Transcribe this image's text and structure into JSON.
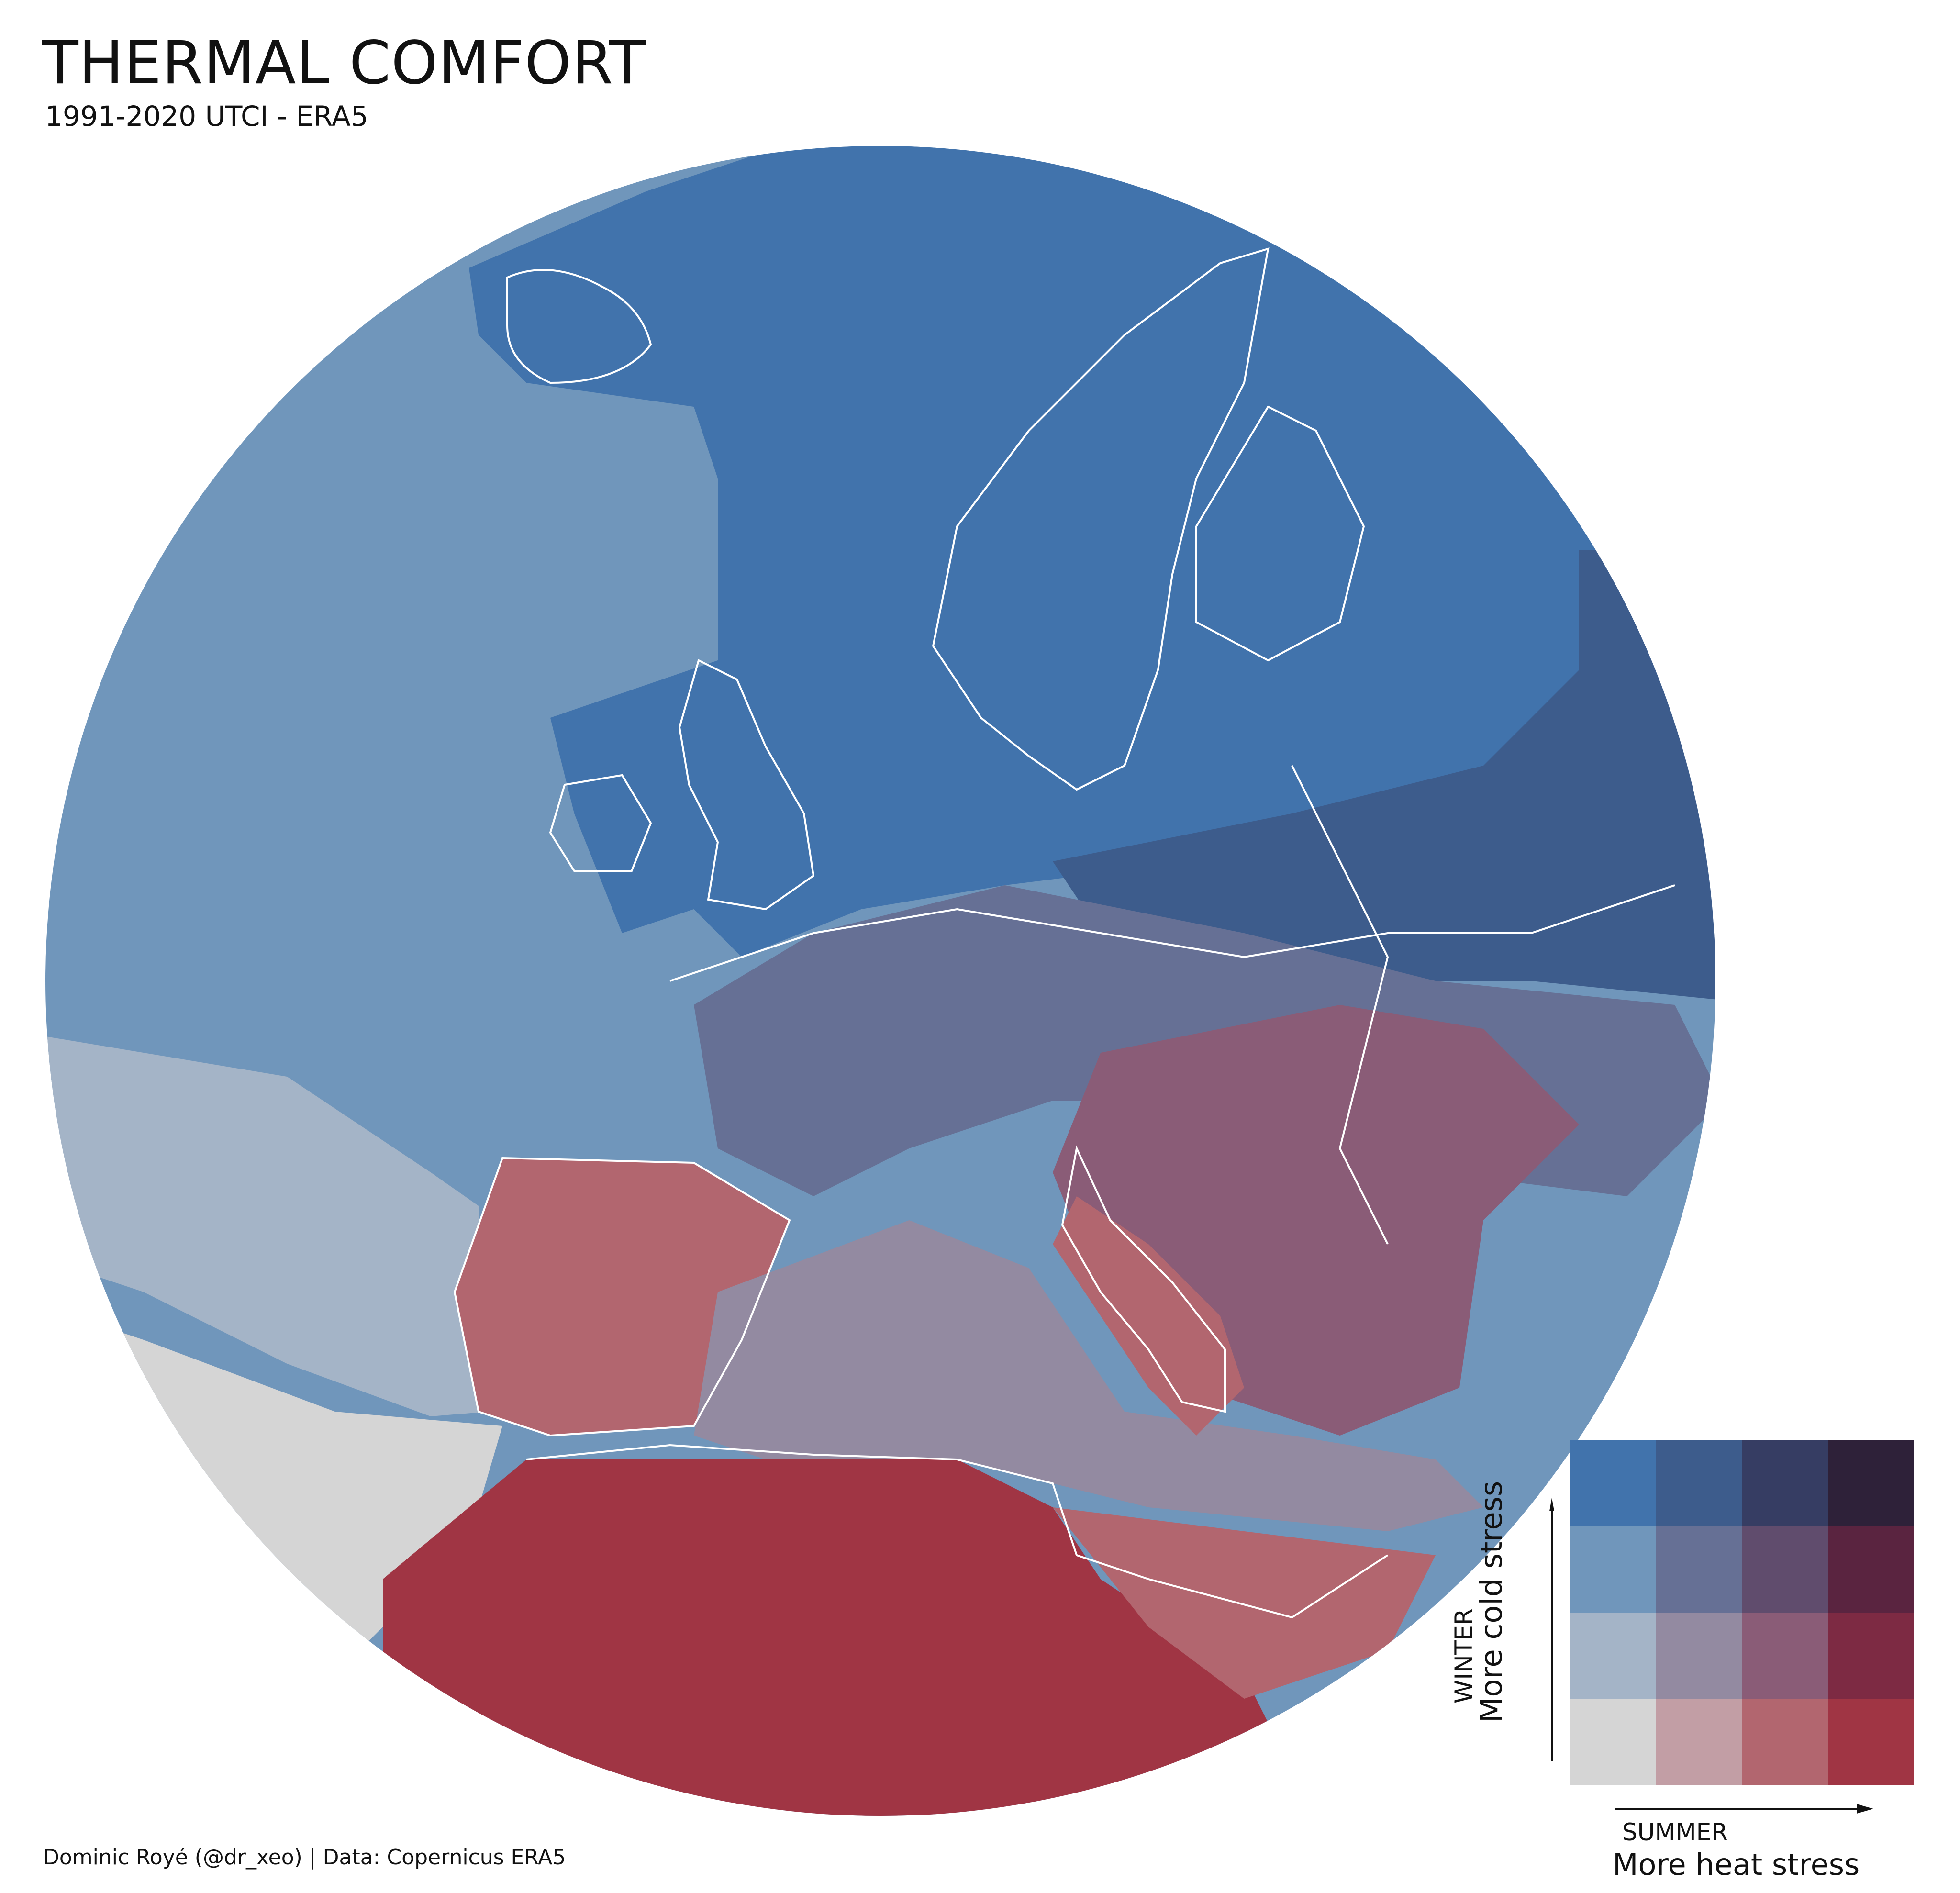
{
  "title": "THERMAL COMFORT",
  "subtitle": "1991-2020 UTCI - ERA5",
  "credit": "Dominic Royé (@dr_xeo) | Data: Copernicus ERA5",
  "legend": {
    "y_label_small": "WINTER",
    "y_label_large": "More cold stress",
    "x_label_small": "SUMMER",
    "x_label_large": "More heat stress",
    "colors": [
      [
        "#4173ac",
        "#3d5c8c",
        "#363d63",
        "#2e2139"
      ],
      [
        "#7096bb",
        "#667095",
        "#604c6d",
        "#5a2440"
      ],
      [
        "#a4b4c7",
        "#938aa1",
        "#8a5c77",
        "#7d2a43"
      ],
      [
        "#d5d5d5",
        "#c29ea5",
        "#b2666f",
        "#a03544"
      ]
    ]
  },
  "map_colors": {
    "ocean_north": "#4173ac",
    "ocean_atlantic": "#7096bb",
    "ocean_light": "#a4b4c7",
    "ocean_grey": "#d5d5d5",
    "east_europe": "#3d5c8c",
    "central_europe": "#667095",
    "med_sea": "#938aa1",
    "balkans": "#8a5c77",
    "north_africa": "#a03544",
    "iberia": "#b2666f",
    "border_color": "#ffffff"
  }
}
